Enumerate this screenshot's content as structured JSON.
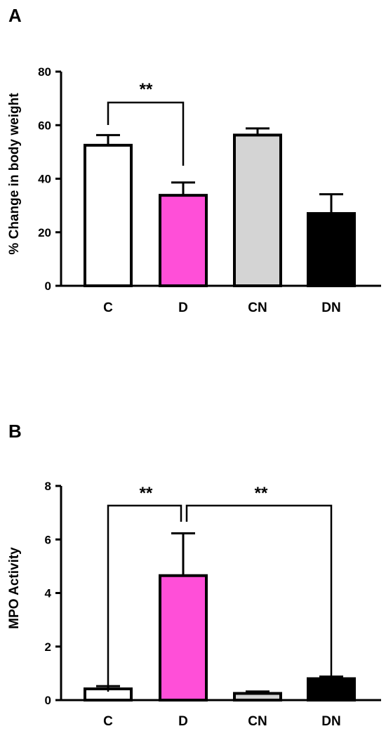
{
  "chart_data": [
    {
      "panel": "A",
      "type": "bar",
      "categories": [
        "C",
        "D",
        "CN",
        "DN"
      ],
      "values": [
        52.5,
        33.8,
        56.3,
        27.0
      ],
      "errors": [
        3.8,
        4.8,
        2.5,
        7.2
      ],
      "colors": [
        "#ffffff",
        "#ff4fd8",
        "#d4d4d4",
        "#000000"
      ],
      "ylabel": "% Change in body weight",
      "ylim": [
        0,
        80
      ],
      "yticks": [
        0,
        20,
        40,
        60,
        80
      ],
      "significance": [
        {
          "from": "C",
          "to": "D",
          "label": "**"
        }
      ]
    },
    {
      "panel": "B",
      "type": "bar",
      "categories": [
        "C",
        "D",
        "CN",
        "DN"
      ],
      "values": [
        0.42,
        4.65,
        0.25,
        0.8
      ],
      "errors": [
        0.1,
        1.58,
        0.07,
        0.08
      ],
      "colors": [
        "#ffffff",
        "#ff4fd8",
        "#d4d4d4",
        "#000000"
      ],
      "ylabel": "MPO Activity",
      "ylim": [
        0,
        8
      ],
      "yticks": [
        0,
        2,
        4,
        6,
        8
      ],
      "significance": [
        {
          "from": "C",
          "to": "D",
          "label": "**"
        },
        {
          "from": "D",
          "to": "DN",
          "label": "**"
        }
      ]
    }
  ]
}
